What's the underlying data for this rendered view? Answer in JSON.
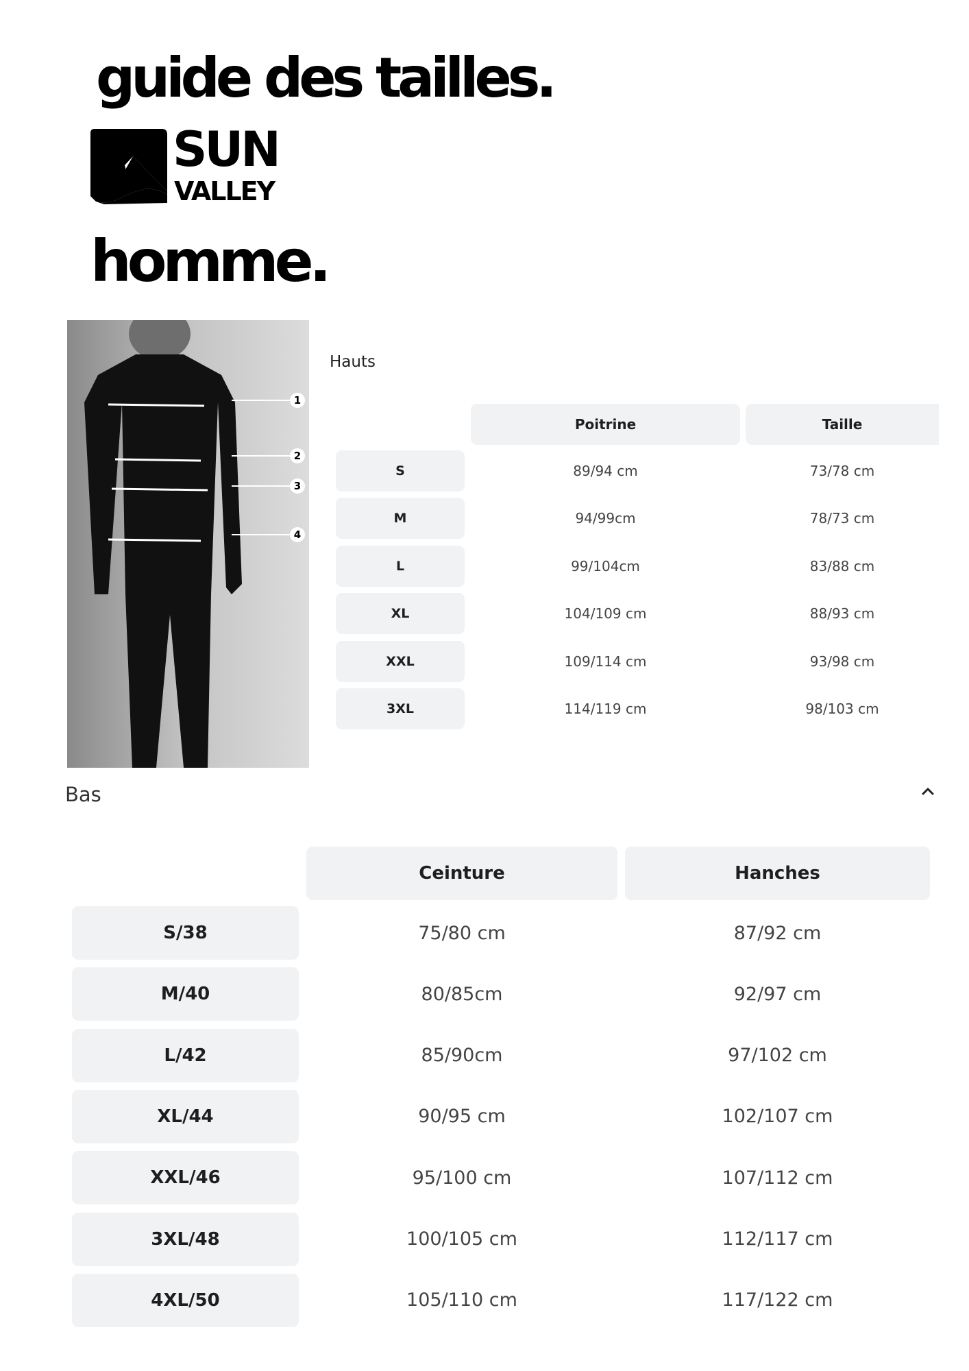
{
  "header": {
    "title": "guide des tailles.",
    "brand_logo": {
      "line1": "SUN",
      "line2": "VALLEY"
    },
    "category": "homme."
  },
  "figure": {
    "markers": [
      "1",
      "2",
      "3",
      "4"
    ]
  },
  "hauts": {
    "label": "Hauts",
    "columns": [
      "Poitrine",
      "Taille"
    ],
    "rows": [
      {
        "size": "S",
        "values": [
          "89/94 cm",
          "73/78 cm"
        ]
      },
      {
        "size": "M",
        "values": [
          "94/99cm",
          "78/73 cm"
        ]
      },
      {
        "size": "L",
        "values": [
          "99/104cm",
          "83/88 cm"
        ]
      },
      {
        "size": "XL",
        "values": [
          "104/109 cm",
          "88/93 cm"
        ]
      },
      {
        "size": "XXL",
        "values": [
          "109/114 cm",
          "93/98 cm"
        ]
      },
      {
        "size": "3XL",
        "values": [
          "114/119 cm",
          "98/103 cm"
        ]
      }
    ]
  },
  "bas": {
    "label": "Bas",
    "collapse_icon": "chevron-up-icon",
    "columns": [
      "Ceinture",
      "Hanches"
    ],
    "rows": [
      {
        "size": "S/38",
        "values": [
          "75/80 cm",
          "87/92 cm"
        ]
      },
      {
        "size": "M/40",
        "values": [
          "80/85cm",
          "92/97 cm"
        ]
      },
      {
        "size": "L/42",
        "values": [
          "85/90cm",
          "97/102 cm"
        ]
      },
      {
        "size": "XL/44",
        "values": [
          "90/95 cm",
          "102/107 cm"
        ]
      },
      {
        "size": "XXL/46",
        "values": [
          "95/100 cm",
          "107/112 cm"
        ]
      },
      {
        "size": "3XL/48",
        "values": [
          "100/105 cm",
          "112/117 cm"
        ]
      },
      {
        "size": "4XL/50",
        "values": [
          "105/110 cm",
          "117/122 cm"
        ]
      }
    ]
  },
  "colors": {
    "cell_bg": "#f1f2f4",
    "text": "#1a1a1a",
    "value_text": "#444444"
  }
}
